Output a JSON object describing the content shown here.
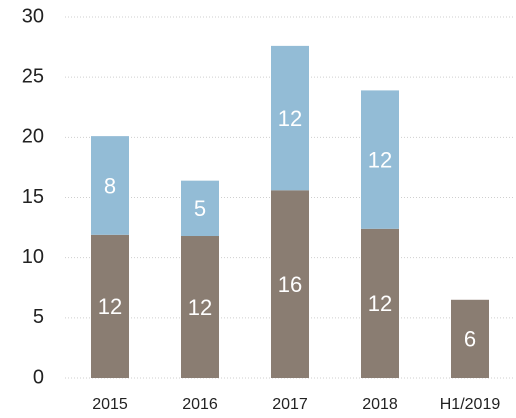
{
  "chart_data": {
    "type": "bar",
    "stacked": true,
    "categories": [
      "2015",
      "2016",
      "2017",
      "2018",
      "H1/2019"
    ],
    "series": [
      {
        "color": "#8a7d72",
        "values": [
          11.9,
          11.8,
          15.6,
          12.4,
          6.5
        ],
        "value_labels": [
          "12",
          "12",
          "16",
          "12",
          "6"
        ]
      },
      {
        "color": "#93bcd6",
        "values": [
          8.2,
          4.6,
          12.0,
          11.5,
          null
        ],
        "value_labels": [
          "8",
          "5",
          "12",
          "12",
          null
        ]
      }
    ],
    "ylim": [
      0,
      30
    ],
    "yticks": [
      0,
      5,
      10,
      15,
      20,
      25,
      30
    ],
    "grid": true
  }
}
